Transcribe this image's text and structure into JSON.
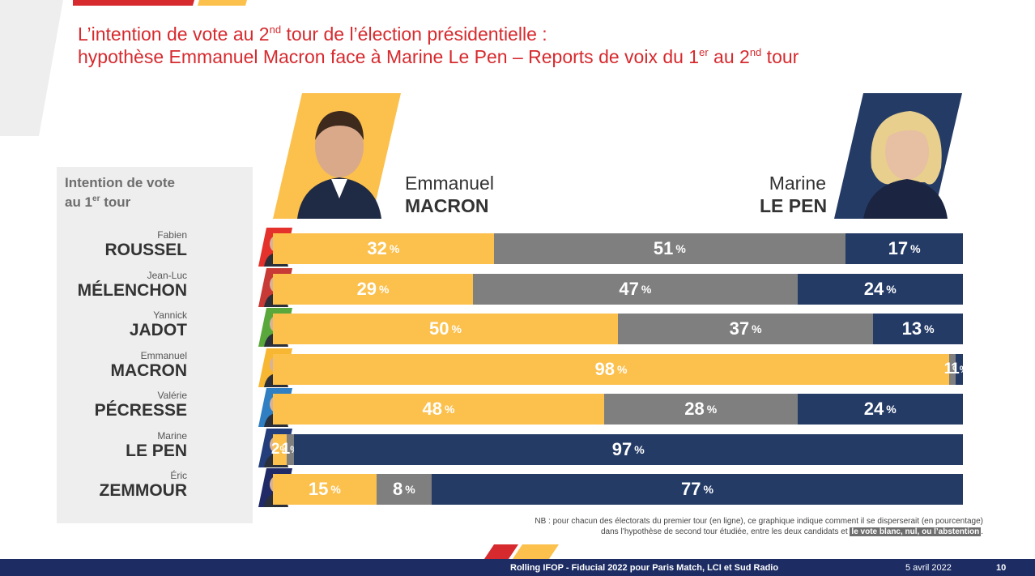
{
  "header": {
    "title_line1_before": "L’intention de vote au 2",
    "title_line1_sup": "nd",
    "title_line1_after": " tour de l’élection présidentielle :",
    "title_line2_before": "hypothèse Emmanuel Macron face à Marine Le Pen – Reports de voix du 1",
    "title_line2_sup1": "er",
    "title_line2_mid": " au 2",
    "title_line2_sup2": "nd",
    "title_line2_after": " tour"
  },
  "panel": {
    "title_line1": "Intention de vote",
    "title_line2_before": "au 1",
    "title_line2_sup": "er",
    "title_line2_after": " tour"
  },
  "finalists": [
    {
      "first": "Emmanuel",
      "last": "MACRON",
      "color": "#fcc04c"
    },
    {
      "first": "Marine",
      "last": "LE PEN",
      "color": "#243b66"
    }
  ],
  "colors": {
    "macron": "#fcc04c",
    "other": "#7f7f7f",
    "lepen": "#243b66",
    "title_red": "#d62a2e",
    "footer_navy": "#1d2c63"
  },
  "chart_data": {
    "type": "bar",
    "orientation": "horizontal",
    "stacked": true,
    "percent_suffix": "%",
    "categories": [
      {
        "first": "Fabien",
        "last": "ROUSSEL",
        "accent": "#e4312b"
      },
      {
        "first": "Jean-Luc",
        "last": "MÉLENCHON",
        "accent": "#c73a35"
      },
      {
        "first": "Yannick",
        "last": "JADOT",
        "accent": "#5aa83c"
      },
      {
        "first": "Emmanuel",
        "last": "MACRON",
        "accent": "#f7b733"
      },
      {
        "first": "Valérie",
        "last": "PÉCRESSE",
        "accent": "#2f7fc2"
      },
      {
        "first": "Marine",
        "last": "LE PEN",
        "accent": "#233e7a"
      },
      {
        "first": "Éric",
        "last": "ZEMMOUR",
        "accent": "#1f2a66"
      }
    ],
    "series": [
      {
        "values": [
          32,
          29,
          50,
          98,
          48,
          2,
          15
        ],
        "color": "#fcc04c"
      },
      {
        "values": [
          51,
          47,
          37,
          1,
          28,
          1,
          8
        ],
        "color": "#7f7f7f"
      },
      {
        "values": [
          17,
          24,
          13,
          1,
          24,
          97,
          77
        ],
        "color": "#243b66"
      }
    ],
    "xlim": [
      0,
      100
    ]
  },
  "note": {
    "line1": "NB : pour chacun des électorats du premier tour (en ligne), ce graphique indique comment il se disperserait (en pourcentage)",
    "line2_before": "dans l’hypothèse de second tour étudiée, entre les deux candidats et ",
    "line2_highlight": "le vote blanc, nul, ou l’abstention",
    "line2_after": "."
  },
  "footer": {
    "source": "Rolling IFOP - Fiducial 2022 pour Paris Match, LCI et Sud Radio",
    "date": "5 avril 2022",
    "page": "10"
  }
}
